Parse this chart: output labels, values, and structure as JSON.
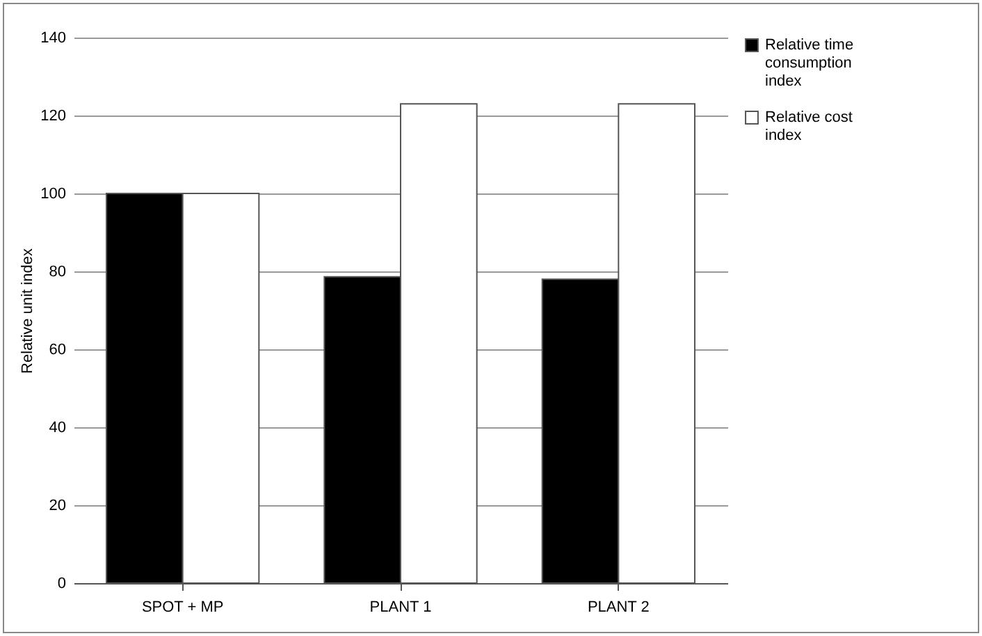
{
  "chart_data": {
    "type": "bar",
    "ylabel": "Relative unit index",
    "categories": [
      "SPOT + MP",
      "PLANT 1",
      "PLANT 2"
    ],
    "series": [
      {
        "name": "Relative time consumption index",
        "color": "#000000",
        "values": [
          100,
          78.6,
          78
        ]
      },
      {
        "name": "Relative cost index",
        "color": "#ffffff",
        "values": [
          100,
          123,
          123
        ]
      }
    ],
    "ylim": [
      0,
      140
    ],
    "yticks": [
      0,
      20,
      40,
      60,
      80,
      100,
      120,
      140
    ],
    "grid": "y",
    "legend": "right"
  }
}
